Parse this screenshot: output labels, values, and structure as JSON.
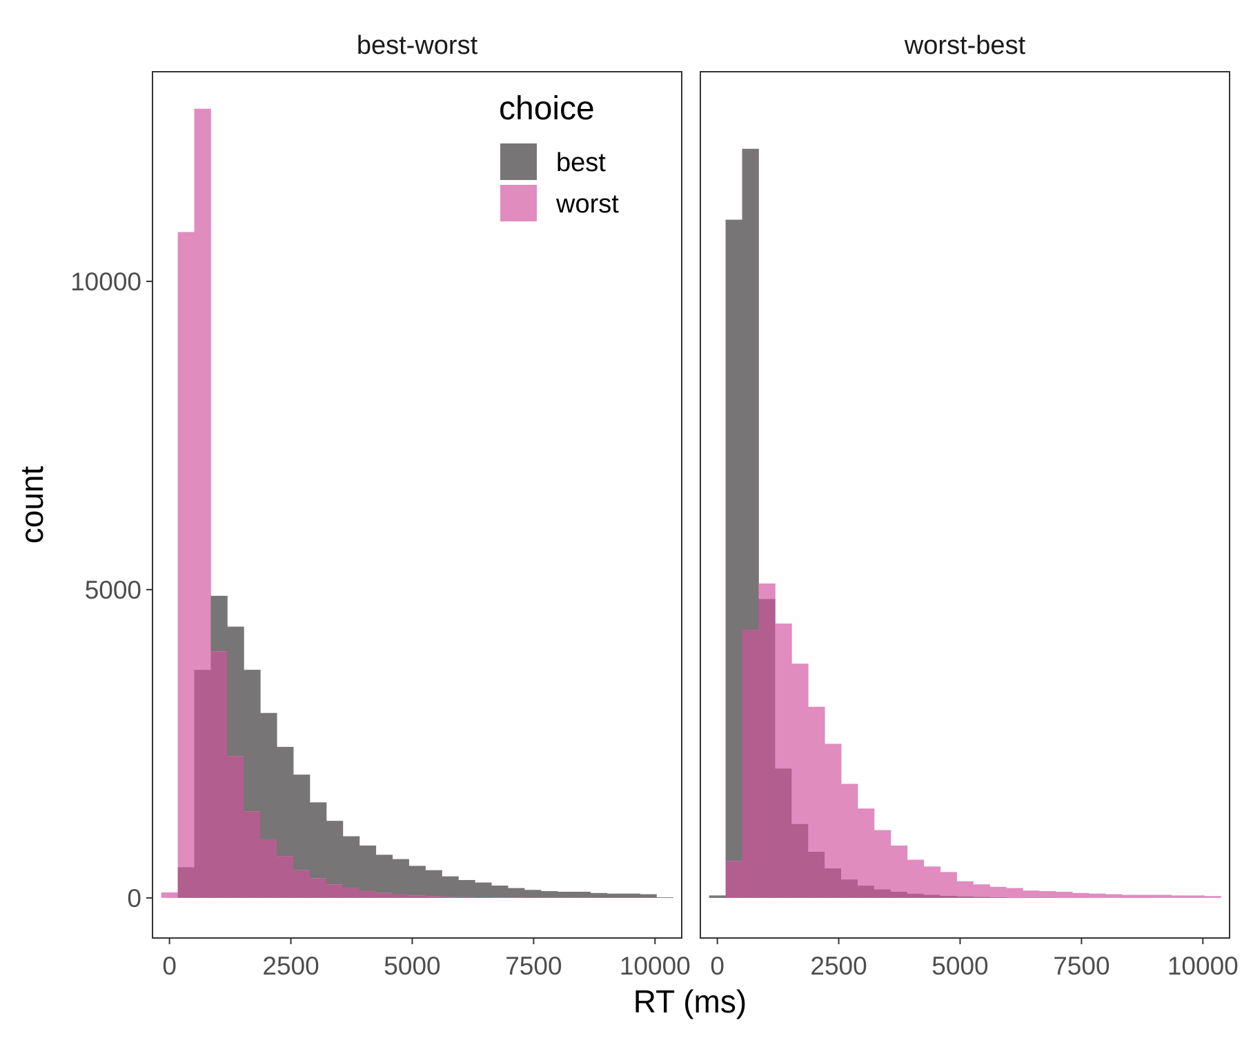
{
  "chart_data": {
    "type": "histogram",
    "xlabel": "RT (ms)",
    "ylabel": "count",
    "xlim": [
      -350,
      10550
    ],
    "ylim": [
      -650,
      13400
    ],
    "x_ticks": [
      0,
      2500,
      5000,
      7500,
      10000
    ],
    "y_ticks": [
      0,
      5000,
      10000
    ],
    "grid": false,
    "bin_width": 340,
    "bin_starts": [
      -170,
      170,
      510,
      850,
      1190,
      1530,
      1870,
      2210,
      2550,
      2890,
      3230,
      3570,
      3910,
      4250,
      4590,
      4930,
      5270,
      5610,
      5950,
      6290,
      6630,
      6970,
      7310,
      7650,
      7990,
      8330,
      8670,
      9010,
      9350,
      9690,
      10030
    ],
    "legend": {
      "title": "choice",
      "position": "top-right",
      "entries": [
        {
          "label": "best",
          "color": "#777575"
        },
        {
          "label": "worst",
          "color": "#e08cbf"
        }
      ]
    },
    "overlap_color": "#b25e8e",
    "panels": [
      {
        "title": "best-worst",
        "series": [
          {
            "name": "best",
            "values": [
              0,
              500,
              3700,
              4900,
              4400,
              3700,
              3000,
              2450,
              2000,
              1550,
              1250,
              1000,
              850,
              700,
              630,
              520,
              450,
              350,
              290,
              250,
              200,
              160,
              130,
              110,
              100,
              100,
              80,
              70,
              70,
              60,
              10
            ]
          },
          {
            "name": "worst",
            "values": [
              90,
              10800,
              12800,
              4000,
              2300,
              1400,
              950,
              680,
              450,
              320,
              220,
              160,
              110,
              80,
              60,
              40,
              30,
              20,
              15,
              10,
              8,
              6,
              4,
              3,
              2,
              2,
              1,
              1,
              1,
              1,
              0
            ]
          }
        ]
      },
      {
        "title": "worst-best",
        "series": [
          {
            "name": "best",
            "values": [
              40,
              11000,
              12150,
              4850,
              2100,
              1200,
              750,
              480,
              300,
              200,
              140,
              100,
              70,
              50,
              35,
              25,
              18,
              12,
              8,
              6,
              4,
              3,
              2,
              1,
              1,
              1,
              1,
              0,
              0,
              0,
              0
            ]
          },
          {
            "name": "worst",
            "values": [
              0,
              600,
              4350,
              5100,
              4450,
              3800,
              3100,
              2500,
              1850,
              1450,
              1100,
              850,
              620,
              510,
              420,
              270,
              220,
              180,
              160,
              120,
              110,
              100,
              80,
              70,
              60,
              50,
              50,
              50,
              40,
              40,
              30
            ]
          }
        ]
      }
    ]
  }
}
